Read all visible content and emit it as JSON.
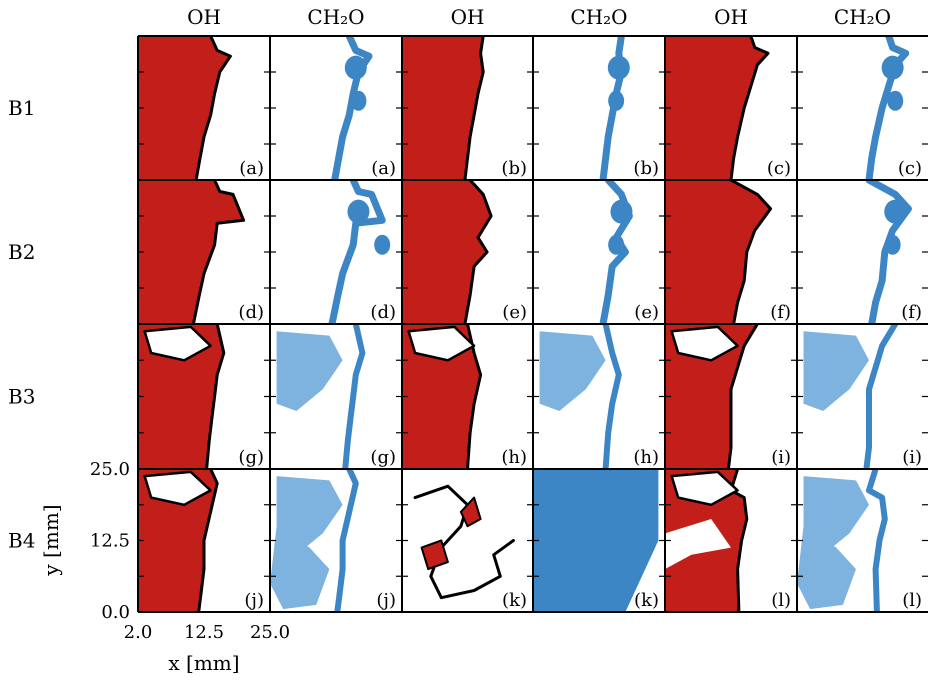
{
  "column_headers": [
    "OH",
    "CH₂O",
    "OH",
    "CH₂O",
    "OH",
    "CH₂O"
  ],
  "row_labels": [
    "B1",
    "B2",
    "B3",
    "B4"
  ],
  "panel_labels": [
    [
      "(a)",
      "(a)",
      "(b)",
      "(b)",
      "(c)",
      "(c)"
    ],
    [
      "(d)",
      "(d)",
      "(e)",
      "(e)",
      "(f)",
      "(f)"
    ],
    [
      "(g)",
      "(g)",
      "(h)",
      "(h)",
      "(i)",
      "(i)"
    ],
    [
      "(j)",
      "(j)",
      "(k)",
      "(k)",
      "(l)",
      "(l)"
    ]
  ],
  "axes": {
    "x_label": "x [mm]",
    "y_label": "y [mm]",
    "x_ticks": [
      "2.0",
      "12.5",
      "25.0"
    ],
    "y_ticks": [
      "25.0",
      "12.5",
      "0.0"
    ]
  },
  "colors": {
    "oh_field": "#c21f1a",
    "oh_field_dark": "#a8120f",
    "ch2o_field": "#3d86c6",
    "ch2o_light": "#7fb3df",
    "contour": "#000000"
  }
}
